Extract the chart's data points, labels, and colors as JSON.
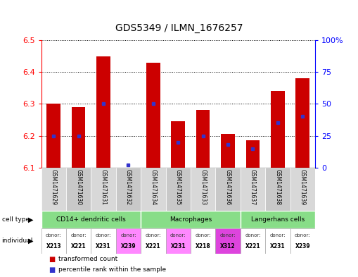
{
  "title": "GDS5349 / ILMN_1676257",
  "samples": [
    "GSM1471629",
    "GSM1471630",
    "GSM1471631",
    "GSM1471632",
    "GSM1471634",
    "GSM1471635",
    "GSM1471633",
    "GSM1471636",
    "GSM1471637",
    "GSM1471638",
    "GSM1471639"
  ],
  "transformed_count": [
    6.3,
    6.29,
    6.45,
    6.1,
    6.43,
    6.245,
    6.28,
    6.205,
    6.185,
    6.34,
    6.38
  ],
  "percentile_rank": [
    25,
    25,
    50,
    2,
    50,
    20,
    25,
    18,
    15,
    35,
    40
  ],
  "ylim_left": [
    6.1,
    6.5
  ],
  "ylim_right": [
    0,
    100
  ],
  "yticks_left": [
    6.1,
    6.2,
    6.3,
    6.4,
    6.5
  ],
  "yticks_right": [
    0,
    25,
    50,
    75,
    100
  ],
  "bar_color": "#cc0000",
  "blue_color": "#3333cc",
  "bar_base": 6.1,
  "cell_type_groups": [
    {
      "label": "CD14+ dendritic cells",
      "start": 0,
      "end": 4
    },
    {
      "label": "Macrophages",
      "start": 4,
      "end": 8
    },
    {
      "label": "Langerhans cells",
      "start": 8,
      "end": 11
    }
  ],
  "cell_type_color": "#88dd88",
  "sample_col_colors": [
    "#d8d8d8",
    "#c8c8c8"
  ],
  "donors": [
    "X213",
    "X221",
    "X231",
    "X239",
    "X221",
    "X231",
    "X218",
    "X312",
    "X221",
    "X231",
    "X239"
  ],
  "donor_colors": [
    "#ffffff",
    "#ffffff",
    "#ffffff",
    "#ff88ff",
    "#ffffff",
    "#ff88ff",
    "#ffffff",
    "#dd44dd",
    "#ffffff",
    "#ffffff",
    "#ffffff"
  ],
  "legend_items": [
    {
      "label": "transformed count",
      "color": "#cc0000"
    },
    {
      "label": "percentile rank within the sample",
      "color": "#3333cc"
    }
  ]
}
